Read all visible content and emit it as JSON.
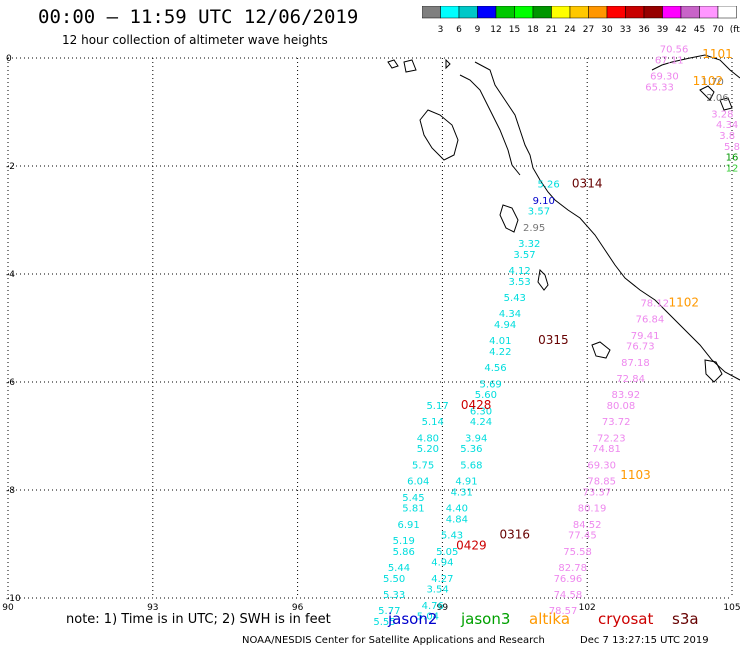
{
  "title": "00:00 – 11:59 UTC 12/06/2019",
  "subtitle": "12 hour collection of altimeter wave heights",
  "colorbar": {
    "colors": [
      "#7f7f7f",
      "#00ffff",
      "#00c8c8",
      "#0000ff",
      "#00c800",
      "#00ff00",
      "#009600",
      "#ffff00",
      "#ffc800",
      "#ff9600",
      "#ff0000",
      "#c80000",
      "#960000",
      "#ff00ff",
      "#c864c8",
      "#ff96ff",
      "#ffffff"
    ],
    "labels": [
      "3",
      "6",
      "9",
      "12",
      "15",
      "18",
      "21",
      "24",
      "27",
      "30",
      "33",
      "36",
      "39",
      "42",
      "45",
      "70",
      "(ft)"
    ]
  },
  "legend": {
    "note": "note: 1) Time is in UTC; 2) SWH is in feet",
    "satellites": [
      {
        "name": "jason2",
        "color": "#0000cc"
      },
      {
        "name": "jason3",
        "color": "#00a000"
      },
      {
        "name": "altika",
        "color": "#ff9900"
      },
      {
        "name": "cryosat",
        "color": "#cc0000"
      },
      {
        "name": "s3a",
        "color": "#660000"
      }
    ]
  },
  "footer": {
    "left": "NOAA/NESDIS Center for Satellite Applications and Research",
    "right": "Dec  7 13:27:15 UTC 2019"
  },
  "chart_data": {
    "type": "scatter",
    "x_ticks": [
      "90",
      "93",
      "96",
      "99",
      "102",
      "105"
    ],
    "y_ticks": [
      "0",
      "-2",
      "-4",
      "-6",
      "-8",
      "-10"
    ],
    "xlim": [
      90,
      105
    ],
    "ylim": [
      -10,
      0
    ],
    "grid": true,
    "annotations": [
      {
        "text": "0314",
        "lon": 102.0,
        "lat": -2.4,
        "color": "#660000"
      },
      {
        "text": "0315",
        "lon": 101.3,
        "lat": -5.3,
        "color": "#660000"
      },
      {
        "text": "0316",
        "lon": 100.5,
        "lat": -8.9,
        "color": "#660000"
      },
      {
        "text": "0428",
        "lon": 99.7,
        "lat": -6.5,
        "color": "#cc0000"
      },
      {
        "text": "0429",
        "lon": 99.6,
        "lat": -9.1,
        "color": "#cc0000"
      },
      {
        "text": "1102",
        "lon": 104.0,
        "lat": -4.6,
        "color": "#ff9900"
      },
      {
        "text": "1103",
        "lon": 103.0,
        "lat": -7.8,
        "color": "#ff9900"
      },
      {
        "text": "1102",
        "lon": 104.5,
        "lat": -0.5,
        "color": "#ff9900"
      },
      {
        "text": "1101",
        "lon": 104.7,
        "lat": 0.0,
        "color": "#ff9900"
      }
    ],
    "series": [
      {
        "name": "s3a",
        "color": "#00dddd",
        "points": [
          {
            "lon": 101.2,
            "lat": -2.4,
            "v": "5.26"
          },
          {
            "lon": 101.1,
            "lat": -2.7,
            "v": "9.10",
            "color": "#0000cc"
          },
          {
            "lon": 101.0,
            "lat": -2.9,
            "v": "3.57"
          },
          {
            "lon": 100.9,
            "lat": -3.2,
            "v": "2.95",
            "color": "#777777"
          },
          {
            "lon": 100.8,
            "lat": -3.5,
            "v": "3.32"
          },
          {
            "lon": 100.7,
            "lat": -3.7,
            "v": "3.57"
          },
          {
            "lon": 100.6,
            "lat": -4.0,
            "v": "4.12"
          },
          {
            "lon": 100.6,
            "lat": -4.2,
            "v": "3.53"
          },
          {
            "lon": 100.5,
            "lat": -4.5,
            "v": "5.43"
          },
          {
            "lon": 100.4,
            "lat": -4.8,
            "v": "4.34"
          },
          {
            "lon": 100.3,
            "lat": -5.0,
            "v": "4.94"
          },
          {
            "lon": 100.2,
            "lat": -5.3,
            "v": "4.01"
          },
          {
            "lon": 100.2,
            "lat": -5.5,
            "v": "4.22"
          },
          {
            "lon": 100.1,
            "lat": -5.8,
            "v": "4.56"
          },
          {
            "lon": 100.0,
            "lat": -6.1,
            "v": "5.69"
          },
          {
            "lon": 99.9,
            "lat": -6.3,
            "v": "5.60"
          },
          {
            "lon": 99.8,
            "lat": -6.6,
            "v": "6.30"
          },
          {
            "lon": 99.8,
            "lat": -6.8,
            "v": "4.24"
          },
          {
            "lon": 99.7,
            "lat": -7.1,
            "v": "3.94"
          },
          {
            "lon": 99.6,
            "lat": -7.3,
            "v": "5.36"
          },
          {
            "lon": 99.6,
            "lat": -7.6,
            "v": "5.68"
          },
          {
            "lon": 99.5,
            "lat": -7.9,
            "v": "4.91"
          },
          {
            "lon": 99.4,
            "lat": -8.1,
            "v": "4.31"
          },
          {
            "lon": 99.3,
            "lat": -8.4,
            "v": "4.40"
          },
          {
            "lon": 99.3,
            "lat": -8.6,
            "v": "4.84"
          },
          {
            "lon": 99.2,
            "lat": -8.9,
            "v": "5.43"
          },
          {
            "lon": 99.1,
            "lat": -9.2,
            "v": "5.05"
          },
          {
            "lon": 99.0,
            "lat": -9.4,
            "v": "4.94"
          },
          {
            "lon": 99.0,
            "lat": -9.7,
            "v": "4.27"
          },
          {
            "lon": 98.9,
            "lat": -9.9,
            "v": "3.54"
          },
          {
            "lon": 98.8,
            "lat": -10.2,
            "v": "4.76"
          },
          {
            "lon": 98.7,
            "lat": -10.4,
            "v": "5.04"
          }
        ]
      },
      {
        "name": "jason3",
        "color": "#00dddd",
        "points": [
          {
            "lon": 98.9,
            "lat": -6.5,
            "v": "5.17"
          },
          {
            "lon": 98.8,
            "lat": -6.8,
            "v": "5.14"
          },
          {
            "lon": 98.7,
            "lat": -7.1,
            "v": "4.80"
          },
          {
            "lon": 98.7,
            "lat": -7.3,
            "v": "5.20"
          },
          {
            "lon": 98.6,
            "lat": -7.6,
            "v": "5.75"
          },
          {
            "lon": 98.5,
            "lat": -7.9,
            "v": "6.04"
          },
          {
            "lon": 98.4,
            "lat": -8.2,
            "v": "5.45"
          },
          {
            "lon": 98.4,
            "lat": -8.4,
            "v": "5.81"
          },
          {
            "lon": 98.3,
            "lat": -8.7,
            "v": "6.91"
          },
          {
            "lon": 98.2,
            "lat": -9.0,
            "v": "5.19"
          },
          {
            "lon": 98.2,
            "lat": -9.2,
            "v": "5.86"
          },
          {
            "lon": 98.1,
            "lat": -9.5,
            "v": "5.44"
          },
          {
            "lon": 98.0,
            "lat": -9.7,
            "v": "5.50"
          },
          {
            "lon": 98.0,
            "lat": -10.0,
            "v": "5.33"
          },
          {
            "lon": 97.9,
            "lat": -10.3,
            "v": "5.77"
          },
          {
            "lon": 97.8,
            "lat": -10.5,
            "v": "5.55"
          }
        ]
      },
      {
        "name": "cryosat",
        "color": "#ee88ee",
        "points": [
          {
            "lon": 103.4,
            "lat": -4.6,
            "v": "78.12"
          },
          {
            "lon": 103.3,
            "lat": -4.9,
            "v": "76.84"
          },
          {
            "lon": 103.2,
            "lat": -5.2,
            "v": "79.41"
          },
          {
            "lon": 103.1,
            "lat": -5.4,
            "v": "76.73"
          },
          {
            "lon": 103.0,
            "lat": -5.7,
            "v": "87.18"
          },
          {
            "lon": 102.9,
            "lat": -6.0,
            "v": "72.84"
          },
          {
            "lon": 102.8,
            "lat": -6.3,
            "v": "83.92"
          },
          {
            "lon": 102.7,
            "lat": -6.5,
            "v": "80.08"
          },
          {
            "lon": 102.6,
            "lat": -6.8,
            "v": "73.72"
          },
          {
            "lon": 102.5,
            "lat": -7.1,
            "v": "72.23"
          },
          {
            "lon": 102.4,
            "lat": -7.3,
            "v": "74.81"
          },
          {
            "lon": 102.3,
            "lat": -7.6,
            "v": "69.30"
          },
          {
            "lon": 102.3,
            "lat": -7.9,
            "v": "78.85"
          },
          {
            "lon": 102.2,
            "lat": -8.1,
            "v": "73.37"
          },
          {
            "lon": 102.1,
            "lat": -8.4,
            "v": "80.19"
          },
          {
            "lon": 102.0,
            "lat": -8.7,
            "v": "84.52"
          },
          {
            "lon": 101.9,
            "lat": -8.9,
            "v": "77.45"
          },
          {
            "lon": 101.8,
            "lat": -9.2,
            "v": "75.58"
          },
          {
            "lon": 101.7,
            "lat": -9.5,
            "v": "82.78"
          },
          {
            "lon": 101.6,
            "lat": -9.7,
            "v": "76.96"
          },
          {
            "lon": 101.6,
            "lat": -10.0,
            "v": "74.58"
          },
          {
            "lon": 101.5,
            "lat": -10.3,
            "v": "78.57"
          }
        ]
      },
      {
        "name": "jason2",
        "color": "#ee88ee",
        "points": [
          {
            "lon": 103.8,
            "lat": 0.1,
            "v": "70.56"
          },
          {
            "lon": 103.7,
            "lat": -0.1,
            "v": "67.11"
          },
          {
            "lon": 103.6,
            "lat": -0.4,
            "v": "69.30"
          },
          {
            "lon": 103.5,
            "lat": -0.6,
            "v": "65.33"
          },
          {
            "lon": 104.6,
            "lat": -0.5,
            "v": "1.70",
            "color": "#777777"
          },
          {
            "lon": 104.7,
            "lat": -0.8,
            "v": "2.06",
            "color": "#777777"
          },
          {
            "lon": 104.8,
            "lat": -1.1,
            "v": "3.28"
          },
          {
            "lon": 104.9,
            "lat": -1.3,
            "v": "4.34"
          },
          {
            "lon": 104.9,
            "lat": -1.5,
            "v": "3.8"
          },
          {
            "lon": 105.0,
            "lat": -1.7,
            "v": "5.8"
          },
          {
            "lon": 105.0,
            "lat": -1.9,
            "v": "16",
            "color": "#009600"
          },
          {
            "lon": 105.0,
            "lat": -2.1,
            "v": "12",
            "color": "#33cc33"
          }
        ]
      }
    ]
  }
}
